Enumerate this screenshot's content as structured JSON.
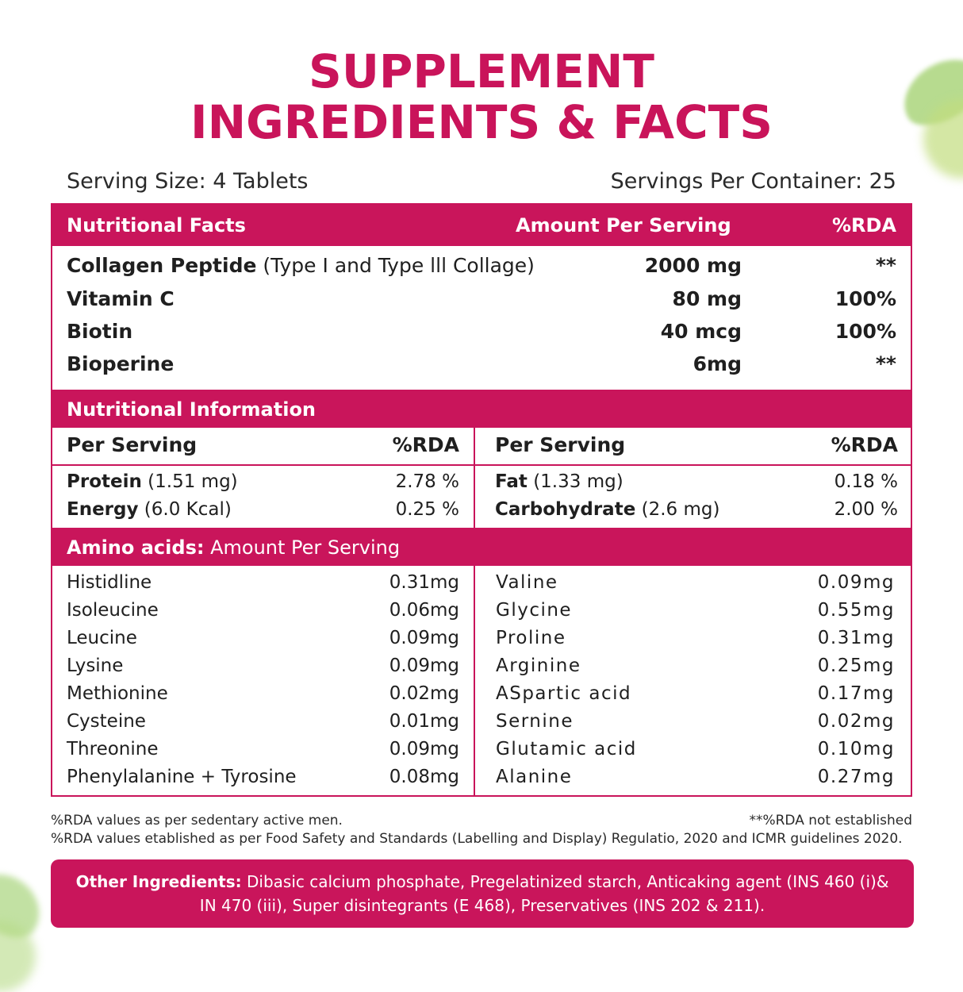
{
  "title": {
    "line1": "SUPPLEMENT",
    "line2": "INGREDIENTS & FACTS"
  },
  "serving": {
    "size": "Serving Size: 4 Tablets",
    "per_container": "Servings Per Container: 25"
  },
  "facts": {
    "header": {
      "col1": "Nutritional Facts",
      "col2": "Amount Per Serving",
      "col3": "%RDA"
    },
    "rows": [
      {
        "name": "Collagen Peptide",
        "sub": " (Type I and Type lll Collage)",
        "amount": "2000 mg",
        "rda": "**"
      },
      {
        "name": "Vitamin C",
        "sub": "",
        "amount": "80 mg",
        "rda": "100%"
      },
      {
        "name": "Biotin",
        "sub": "",
        "amount": "40 mcg",
        "rda": "100%"
      },
      {
        "name": "Bioperine",
        "sub": "",
        "amount": "6mg",
        "rda": "**"
      }
    ]
  },
  "info": {
    "header": "Nutritional Information",
    "left_head": {
      "col1": "Per Serving",
      "col2": "%RDA"
    },
    "right_head": {
      "col1": "Per Serving",
      "col2": "%RDA"
    },
    "left_rows": [
      {
        "name": "Protein",
        "sub": " (1.51 mg)",
        "rda": "2.78 %"
      },
      {
        "name": "Energy",
        "sub": " (6.0 Kcal)",
        "rda": "0.25 %"
      }
    ],
    "right_rows": [
      {
        "name": "Fat",
        "sub": " (1.33 mg)",
        "rda": "0.18 %"
      },
      {
        "name": "Carbohydrate",
        "sub": " (2.6 mg)",
        "rda": "2.00 %"
      }
    ]
  },
  "amino": {
    "header_bold": "Amino acids:",
    "header_light": " Amount Per Serving",
    "left": [
      {
        "name": "Histidline",
        "amount": "0.31mg"
      },
      {
        "name": "Isoleucine",
        "amount": "0.06mg"
      },
      {
        "name": "Leucine",
        "amount": "0.09mg"
      },
      {
        "name": "Lysine",
        "amount": "0.09mg"
      },
      {
        "name": "Methionine",
        "amount": "0.02mg"
      },
      {
        "name": "Cysteine",
        "amount": "0.01mg"
      },
      {
        "name": "Threonine",
        "amount": "0.09mg"
      },
      {
        "name": "Phenylalanine + Tyrosine",
        "amount": "0.08mg"
      }
    ],
    "right": [
      {
        "name": "Valine",
        "amount": "0.09mg"
      },
      {
        "name": "Glycine",
        "amount": "0.55mg"
      },
      {
        "name": "Proline",
        "amount": "0.31mg"
      },
      {
        "name": "Arginine",
        "amount": "0.25mg"
      },
      {
        "name": "ASpartic acid",
        "amount": "0.17mg"
      },
      {
        "name": "Sernine",
        "amount": "0.02mg"
      },
      {
        "name": "Glutamic acid",
        "amount": "0.10mg"
      },
      {
        "name": "Alanine",
        "amount": "0.27mg"
      }
    ]
  },
  "footnotes": {
    "line1_left": "%RDA values as per sedentary active men.",
    "line1_right": "**%RDA not established",
    "line2": "%RDA values etablished as per Food Safety and Standards (Labelling and Display) Regulatio, 2020 and ICMR guidelines 2020."
  },
  "other": {
    "label": "Other Ingredients:",
    "text_line1": " Dibasic calcium phosphate, Pregelatinized starch, Anticaking agent (INS 460 (i)&",
    "text_line2": "IN 470 (iii), Super disintegrants (E 468), Preservatives (INS 202 & 211)."
  },
  "colors": {
    "brand": "#c9145a",
    "text": "#1f1f1f",
    "white": "#ffffff"
  }
}
